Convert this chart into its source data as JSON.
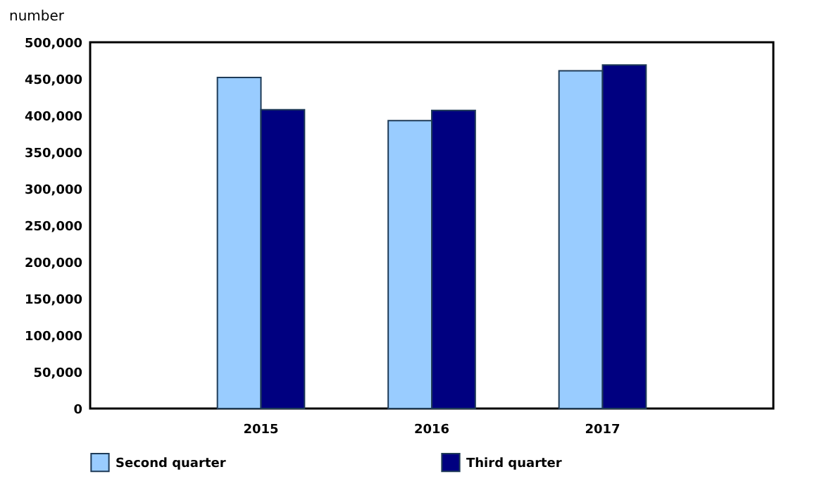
{
  "chart_data": {
    "type": "bar",
    "ylabel": "number",
    "categories": [
      "2015",
      "2016",
      "2017"
    ],
    "series": [
      {
        "name": "Second quarter",
        "color": "#99ccff",
        "values": [
          452000,
          393000,
          461000
        ]
      },
      {
        "name": "Third quarter",
        "color": "#000080",
        "values": [
          408000,
          407000,
          469000
        ]
      }
    ],
    "ylim": [
      0,
      500000
    ],
    "yticks": [
      0,
      {
        "value": 50000,
        "label": "50,000"
      },
      {
        "value": 100000,
        "label": "100,000"
      },
      {
        "value": 150000,
        "label": "150,000"
      },
      {
        "value": 200000,
        "label": "200,000"
      },
      {
        "value": 250000,
        "label": "250,000"
      },
      {
        "value": 300000,
        "label": "300,000"
      },
      {
        "value": 350000,
        "label": "350,000"
      },
      {
        "value": 400000,
        "label": "400,000"
      },
      {
        "value": 450000,
        "label": "450,000"
      },
      {
        "value": 500000,
        "label": "500,000"
      }
    ],
    "grid": false,
    "legend": "bottom"
  }
}
